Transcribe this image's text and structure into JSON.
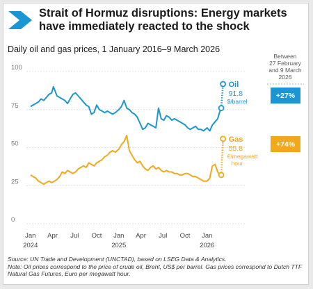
{
  "title": "Strait of Hormuz disruptions: Energy markets have immediately reacted to the shock",
  "subtitle": "Daily oil and gas prices, 1 January 2016–9 March 2026",
  "colors": {
    "oil": "#1b96d3",
    "gas": "#f2a81d",
    "accent_chevron": "#1b96d3"
  },
  "icons": {
    "header": "chevron-right-icon"
  },
  "change_note": "Between 27 February and 9 March 2026",
  "source": "Source: UN Trade and Development (UNCTAD), based on LSEG Data & Analytics.",
  "note": "Note: Oil prices correspond to the price of crude oil, Brent, US$ per barrel. Gas prices correspond to Dutch TTF Natural Gas Futures, Euro per megawatt hour.",
  "chart_data": {
    "type": "line",
    "y_ticks": [
      "0",
      "25",
      "50",
      "75",
      "100"
    ],
    "ylim": [
      0,
      100
    ],
    "grid": true,
    "x_ticks": [
      {
        "label": "Jan",
        "sub": "2024",
        "value": 2024.0
      },
      {
        "label": "Apr",
        "sub": "",
        "value": 2024.25
      },
      {
        "label": "Jul",
        "sub": "",
        "value": 2024.5
      },
      {
        "label": "Oct",
        "sub": "",
        "value": 2024.75
      },
      {
        "label": "Jan",
        "sub": "2025",
        "value": 2025.0
      },
      {
        "label": "Apr",
        "sub": "",
        "value": 2025.25
      },
      {
        "label": "Jul",
        "sub": "",
        "value": 2025.5
      },
      {
        "label": "Oct",
        "sub": "",
        "value": 2025.75
      },
      {
        "label": "Jan",
        "sub": "2026",
        "value": 2026.0
      }
    ],
    "xlim": [
      2023.97,
      2026.38
    ],
    "series": [
      {
        "name": "Oil",
        "value_label": "91.8",
        "unit": "$/barrel",
        "change": "+27%",
        "color": "#1b96d3",
        "x": [
          2024.0,
          2024.03,
          2024.06,
          2024.09,
          2024.12,
          2024.15,
          2024.18,
          2024.21,
          2024.24,
          2024.26,
          2024.28,
          2024.3,
          2024.33,
          2024.36,
          2024.39,
          2024.42,
          2024.45,
          2024.48,
          2024.51,
          2024.54,
          2024.57,
          2024.6,
          2024.63,
          2024.66,
          2024.69,
          2024.72,
          2024.75,
          2024.78,
          2024.81,
          2024.84,
          2024.87,
          2024.9,
          2024.93,
          2024.96,
          2025.0,
          2025.03,
          2025.06,
          2025.09,
          2025.12,
          2025.15,
          2025.18,
          2025.21,
          2025.24,
          2025.27,
          2025.3,
          2025.33,
          2025.36,
          2025.39,
          2025.42,
          2025.45,
          2025.48,
          2025.51,
          2025.54,
          2025.57,
          2025.6,
          2025.63,
          2025.66,
          2025.69,
          2025.72,
          2025.75,
          2025.78,
          2025.81,
          2025.84,
          2025.87,
          2025.9,
          2025.93,
          2025.96,
          2026.0,
          2026.03,
          2026.06,
          2026.09,
          2026.12,
          2026.14,
          2026.16,
          2026.18
        ],
        "values": [
          77,
          78,
          79,
          80,
          82,
          81,
          83,
          85,
          86,
          90,
          87,
          84,
          83,
          82,
          81,
          79,
          82,
          85,
          86,
          84,
          82,
          80,
          78,
          77,
          72,
          73,
          78,
          75,
          74,
          73,
          74,
          73,
          72,
          73,
          75,
          77,
          81,
          76,
          75,
          73,
          72,
          70,
          66,
          62,
          63,
          66,
          65,
          64,
          63,
          76,
          69,
          68,
          71,
          70,
          68,
          69,
          68,
          67,
          66,
          65,
          63,
          62,
          63,
          64,
          62,
          62,
          61,
          63,
          61,
          65,
          67,
          69,
          73,
          76,
          91.8
        ]
      },
      {
        "name": "Gas",
        "value_label": "55.8",
        "unit": "€/megawatt hour",
        "change": "+74%",
        "color": "#f2a81d",
        "x": [
          2024.0,
          2024.03,
          2024.06,
          2024.09,
          2024.12,
          2024.15,
          2024.18,
          2024.21,
          2024.24,
          2024.27,
          2024.3,
          2024.33,
          2024.36,
          2024.39,
          2024.42,
          2024.45,
          2024.48,
          2024.51,
          2024.54,
          2024.57,
          2024.6,
          2024.63,
          2024.66,
          2024.69,
          2024.72,
          2024.75,
          2024.78,
          2024.81,
          2024.84,
          2024.87,
          2024.9,
          2024.93,
          2024.96,
          2025.0,
          2025.03,
          2025.06,
          2025.09,
          2025.12,
          2025.15,
          2025.18,
          2025.21,
          2025.24,
          2025.27,
          2025.3,
          2025.33,
          2025.36,
          2025.39,
          2025.42,
          2025.45,
          2025.48,
          2025.51,
          2025.54,
          2025.57,
          2025.6,
          2025.63,
          2025.66,
          2025.69,
          2025.72,
          2025.75,
          2025.78,
          2025.81,
          2025.84,
          2025.87,
          2025.9,
          2025.93,
          2025.96,
          2026.0,
          2026.03,
          2026.06,
          2026.09,
          2026.12,
          2026.14,
          2026.16,
          2026.18
        ],
        "values": [
          32,
          31,
          30,
          28,
          27,
          26,
          27,
          28,
          27,
          28,
          29,
          31,
          34,
          33,
          35,
          34,
          33,
          34,
          36,
          37,
          38,
          37,
          40,
          39,
          38,
          40,
          41,
          42,
          44,
          45,
          47,
          48,
          47,
          49,
          52,
          54,
          58,
          48,
          45,
          42,
          40,
          41,
          38,
          36,
          35,
          37,
          38,
          36,
          37,
          35,
          34,
          35,
          34,
          34,
          33,
          33,
          32,
          32,
          33,
          33,
          32,
          31,
          31,
          30,
          29,
          28,
          28,
          30,
          38,
          39,
          34,
          32,
          32,
          55.8
        ]
      }
    ]
  }
}
